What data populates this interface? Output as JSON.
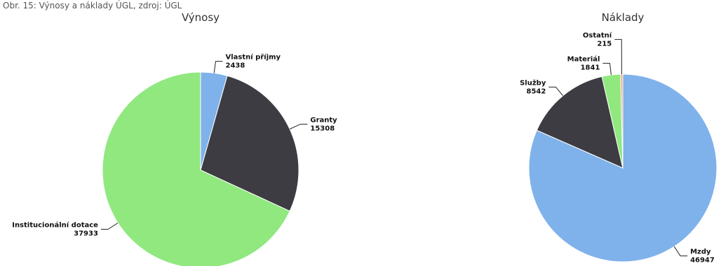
{
  "caption": "Obr. 15: Výnosy a náklady ÚGL, zdroj: ÚGL",
  "chart_data": [
    {
      "type": "pie",
      "title": "Výnosy",
      "categories": [
        "Vlastní příjmy",
        "Granty",
        "Institucionální dotace"
      ],
      "values": [
        2438,
        15308,
        37933
      ],
      "colors": [
        "#7fb2ea",
        "#3d3c42",
        "#90e87f"
      ]
    },
    {
      "type": "pie",
      "title": "Náklady",
      "categories": [
        "Mzdy",
        "Služby",
        "Materiál",
        "Ostatní"
      ],
      "values": [
        46947,
        8542,
        1841,
        215
      ],
      "colors": [
        "#7fb2ea",
        "#3d3c42",
        "#90e87f",
        "#f4a582"
      ]
    }
  ]
}
